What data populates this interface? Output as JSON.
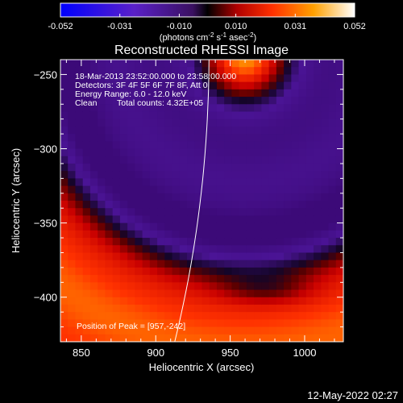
{
  "chart_data": {
    "type": "heatmap",
    "title": "Reconstructed RHESSI Image",
    "xlabel": "Heliocentric X (arcsec)",
    "ylabel": "Heliocentric Y (arcsec)",
    "xlim": [
      836,
      1026
    ],
    "ylim": [
      -430,
      -240
    ],
    "x_ticks": [
      850,
      900,
      950,
      1000
    ],
    "y_ticks": [
      -250,
      -300,
      -350,
      -400
    ],
    "colorbar": {
      "min": -0.052,
      "max": 0.052,
      "ticks": [
        "-0.052",
        "-0.031",
        "-0.010",
        "0.010",
        "0.031",
        "0.052"
      ],
      "unit_base": "(photons cm",
      "unit_e1": "-2",
      "unit_m1": " s",
      "unit_e2": "-1",
      "unit_m2": " asec",
      "unit_e3": "-2",
      "unit_end": ")",
      "stops": [
        "#0000ff",
        "#5a20c8",
        "#5a1a9a",
        "#000000",
        "#c80000",
        "#ff3000",
        "#ffa000",
        "#ffffff"
      ]
    },
    "annotations": {
      "time_range": "18-Mar-2013 23:52:00.000 to 23:58:00.000",
      "detectors": "Detectors: 3F 4F 5F 6F 7F 8F, Att 0",
      "energy_range": "Energy Range: 6.0 - 12.0 keV",
      "clean_label": "Clean",
      "total_counts": "Total counts: 4.32E+05",
      "peak": "Position of Peak = [957,-242]"
    },
    "peak": [
      957,
      -242
    ]
  },
  "footer": {
    "timestamp": "12-May-2022 02:27"
  }
}
